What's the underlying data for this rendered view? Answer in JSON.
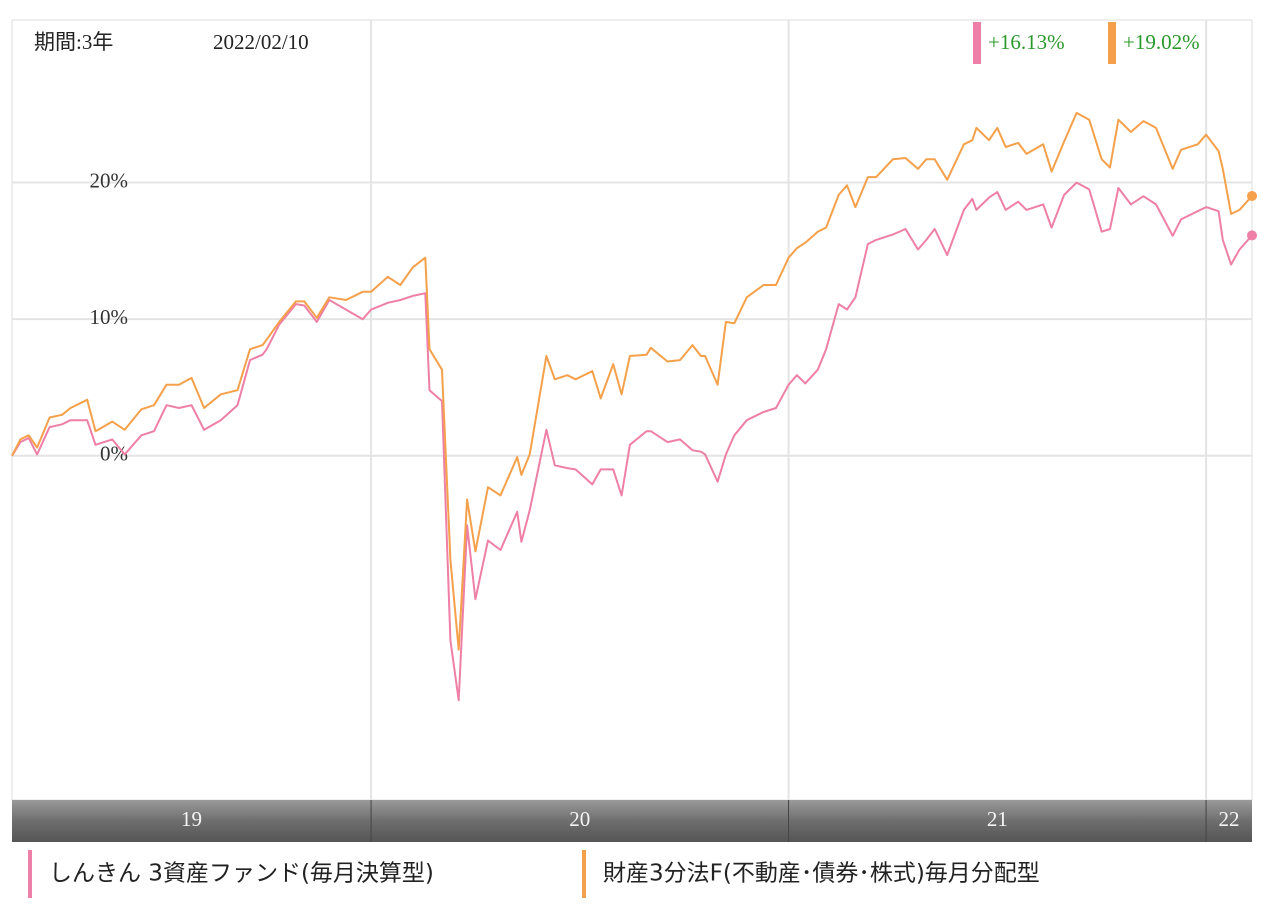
{
  "chart_data": {
    "type": "line",
    "period_label": "期間:3年",
    "date": "2022/02/10",
    "x": [
      19.14,
      19.16,
      19.18,
      19.2,
      19.23,
      19.26,
      19.28,
      19.32,
      19.34,
      19.38,
      19.41,
      19.45,
      19.48,
      19.51,
      19.54,
      19.57,
      19.6,
      19.64,
      19.68,
      19.71,
      19.74,
      19.75,
      19.78,
      19.82,
      19.84,
      19.87,
      19.9,
      19.94,
      19.98,
      20.0,
      20.04,
      20.07,
      20.1,
      20.13,
      20.14,
      20.17,
      20.19,
      20.21,
      20.23,
      20.25,
      20.28,
      20.31,
      20.35,
      20.36,
      20.38,
      20.42,
      20.44,
      20.47,
      20.49,
      20.53,
      20.55,
      20.58,
      20.6,
      20.62,
      20.66,
      20.67,
      20.71,
      20.74,
      20.77,
      20.79,
      20.8,
      20.83,
      20.85,
      20.87,
      20.9,
      20.94,
      20.97,
      21.0,
      21.02,
      21.04,
      21.07,
      21.09,
      21.12,
      21.14,
      21.16,
      21.19,
      21.21,
      21.25,
      21.28,
      21.31,
      21.33,
      21.35,
      21.38,
      21.42,
      21.44,
      21.45,
      21.48,
      21.5,
      21.52,
      21.55,
      21.57,
      21.61,
      21.63,
      21.66,
      21.69,
      21.72,
      21.75,
      21.77,
      21.79,
      21.82,
      21.85,
      21.88,
      21.92,
      21.94,
      21.98,
      22.0,
      22.03,
      22.04,
      22.06,
      22.08,
      22.11
    ],
    "series": [
      {
        "name": "しんきん 3資産ファンド(毎月決算型)",
        "color": "#ee7fa6",
        "end_label": "+16.13%",
        "values": [
          0,
          1.0,
          1.3,
          0.1,
          2.1,
          2.3,
          2.6,
          2.6,
          0.8,
          1.2,
          0.1,
          1.5,
          1.8,
          3.7,
          3.5,
          3.7,
          1.9,
          2.6,
          3.7,
          7.0,
          7.4,
          7.8,
          9.6,
          11.1,
          11.0,
          9.8,
          11.4,
          10.7,
          10.0,
          10.7,
          11.2,
          11.4,
          11.7,
          11.9,
          4.8,
          4.0,
          -13.5,
          -17.9,
          -5.1,
          -10.5,
          -6.2,
          -6.9,
          -4.1,
          -6.3,
          -4.0,
          1.9,
          -0.7,
          -0.9,
          -1.0,
          -2.1,
          -1.0,
          -1.0,
          -2.9,
          0.8,
          1.8,
          1.8,
          1.0,
          1.2,
          0.4,
          0.3,
          0.1,
          -1.9,
          0.1,
          1.5,
          2.6,
          3.2,
          3.5,
          5.2,
          5.9,
          5.3,
          6.3,
          7.8,
          11.1,
          10.7,
          11.6,
          15.5,
          15.8,
          16.2,
          16.6,
          15.1,
          15.8,
          16.6,
          14.7,
          18.0,
          18.8,
          18.0,
          18.9,
          19.3,
          18.0,
          18.6,
          18.0,
          18.4,
          16.7,
          19.1,
          20.0,
          19.5,
          16.4,
          16.6,
          19.6,
          18.4,
          19.0,
          18.4,
          16.1,
          17.3,
          17.9,
          18.2,
          17.9,
          15.8,
          14.0,
          15.1,
          16.13
        ]
      },
      {
        "name": "財産3分法F(不動産･債券･株式)毎月分配型",
        "color": "#f5a04a",
        "end_label": "+19.02%",
        "values": [
          0,
          1.2,
          1.5,
          0.6,
          2.8,
          3.0,
          3.5,
          4.1,
          1.8,
          2.5,
          1.9,
          3.4,
          3.7,
          5.2,
          5.2,
          5.7,
          3.5,
          4.5,
          4.8,
          7.8,
          8.1,
          8.5,
          9.8,
          11.3,
          11.3,
          10.1,
          11.6,
          11.4,
          12.0,
          12.0,
          13.1,
          12.5,
          13.8,
          14.5,
          7.8,
          6.3,
          -7.6,
          -14.2,
          -3.2,
          -7.0,
          -2.3,
          -2.9,
          -0.1,
          -1.4,
          0.1,
          7.3,
          5.6,
          5.9,
          5.6,
          6.2,
          4.2,
          6.7,
          4.5,
          7.3,
          7.4,
          7.9,
          6.9,
          7.0,
          8.1,
          7.3,
          7.3,
          5.2,
          9.8,
          9.7,
          11.6,
          12.5,
          12.5,
          14.5,
          15.2,
          15.6,
          16.4,
          16.7,
          19.1,
          19.8,
          18.2,
          20.4,
          20.4,
          21.7,
          21.8,
          21.0,
          21.7,
          21.7,
          20.2,
          22.8,
          23.1,
          24.0,
          23.1,
          24.0,
          22.6,
          22.9,
          22.1,
          22.8,
          20.8,
          23.0,
          25.1,
          24.6,
          21.7,
          21.1,
          24.6,
          23.7,
          24.5,
          24.0,
          21.0,
          22.4,
          22.8,
          23.5,
          22.3,
          21.0,
          17.7,
          18.0,
          19.02
        ]
      }
    ],
    "xlim": [
      19.14,
      22.11
    ],
    "xticks": [
      20,
      21,
      22
    ],
    "year_labels": [
      19,
      20,
      21,
      22
    ],
    "ylim": [
      -25.2,
      31.9
    ],
    "yticks": [
      {
        "value": 0,
        "label": "0%"
      },
      {
        "value": 10,
        "label": "10%"
      },
      {
        "value": 20,
        "label": "20%"
      }
    ],
    "grid": true,
    "end_label_color": "#2a9a2a"
  }
}
